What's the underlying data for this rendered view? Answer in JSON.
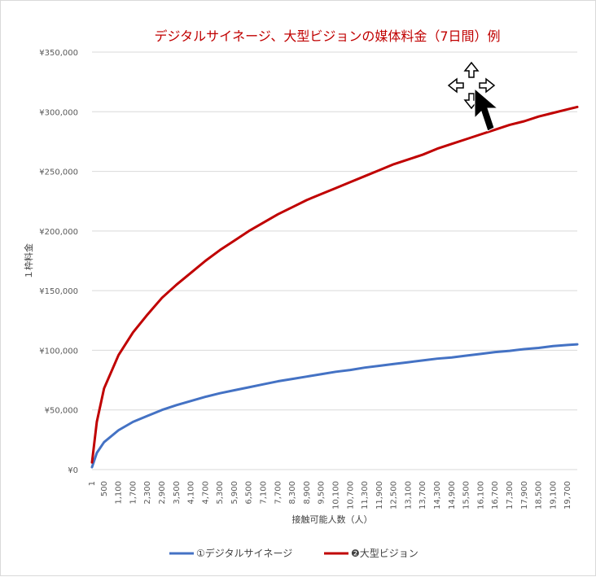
{
  "chart_data": {
    "type": "line",
    "title": "デジタルサイネージ、大型ビジョンの媒体料金（7日間）例",
    "xlabel": "接触可能人数（人）",
    "ylabel": "１枠料金",
    "ylim": [
      0,
      350000
    ],
    "y_ticks": [
      "¥0",
      "¥50,000",
      "¥100,000",
      "¥150,000",
      "¥200,000",
      "¥250,000",
      "¥300,000",
      "¥350,000"
    ],
    "x_ticks": [
      "1",
      "500",
      "1,100",
      "1,700",
      "2,300",
      "2,900",
      "3,500",
      "4,100",
      "4,700",
      "5,300",
      "5,900",
      "6,500",
      "7,100",
      "7,700",
      "8,300",
      "8,900",
      "9,500",
      "10,100",
      "10,700",
      "11,300",
      "11,900",
      "12,500",
      "13,100",
      "13,700",
      "14,300",
      "14,900",
      "15,500",
      "16,100",
      "16,700",
      "17,300",
      "17,900",
      "18,500",
      "19,100",
      "19,700"
    ],
    "x": [
      1,
      200,
      500,
      1100,
      1700,
      2300,
      2900,
      3500,
      4100,
      4700,
      5300,
      5900,
      6500,
      7100,
      7700,
      8300,
      8900,
      9500,
      10100,
      10700,
      11300,
      11900,
      12500,
      13100,
      13700,
      14300,
      14900,
      15500,
      16100,
      16700,
      17300,
      17900,
      18500,
      19100,
      19700,
      20100
    ],
    "series": [
      {
        "name": "①デジタルサイネージ",
        "color": "#4472c4",
        "values": [
          2000,
          14000,
          23000,
          33000,
          40000,
          45000,
          50000,
          54000,
          57500,
          61000,
          64000,
          66500,
          69000,
          71500,
          74000,
          76000,
          78000,
          80000,
          82000,
          83500,
          85500,
          87000,
          88500,
          90000,
          91500,
          93000,
          94000,
          95500,
          97000,
          98500,
          99500,
          101000,
          102000,
          103500,
          104500,
          105000
        ]
      },
      {
        "name": "❷大型ビジョン",
        "color": "#c00000",
        "values": [
          6000,
          40000,
          68000,
          96000,
          115000,
          130000,
          144000,
          155000,
          165000,
          175000,
          184000,
          192000,
          200000,
          207000,
          214000,
          220000,
          226000,
          231000,
          236000,
          241000,
          246000,
          251000,
          256000,
          260000,
          264000,
          269000,
          273000,
          277000,
          281000,
          285000,
          289000,
          292000,
          296000,
          299000,
          302000,
          304000
        ]
      }
    ],
    "grid": true,
    "legend_position": "bottom"
  },
  "icons": {
    "cursor": "move-pointer-icon"
  }
}
